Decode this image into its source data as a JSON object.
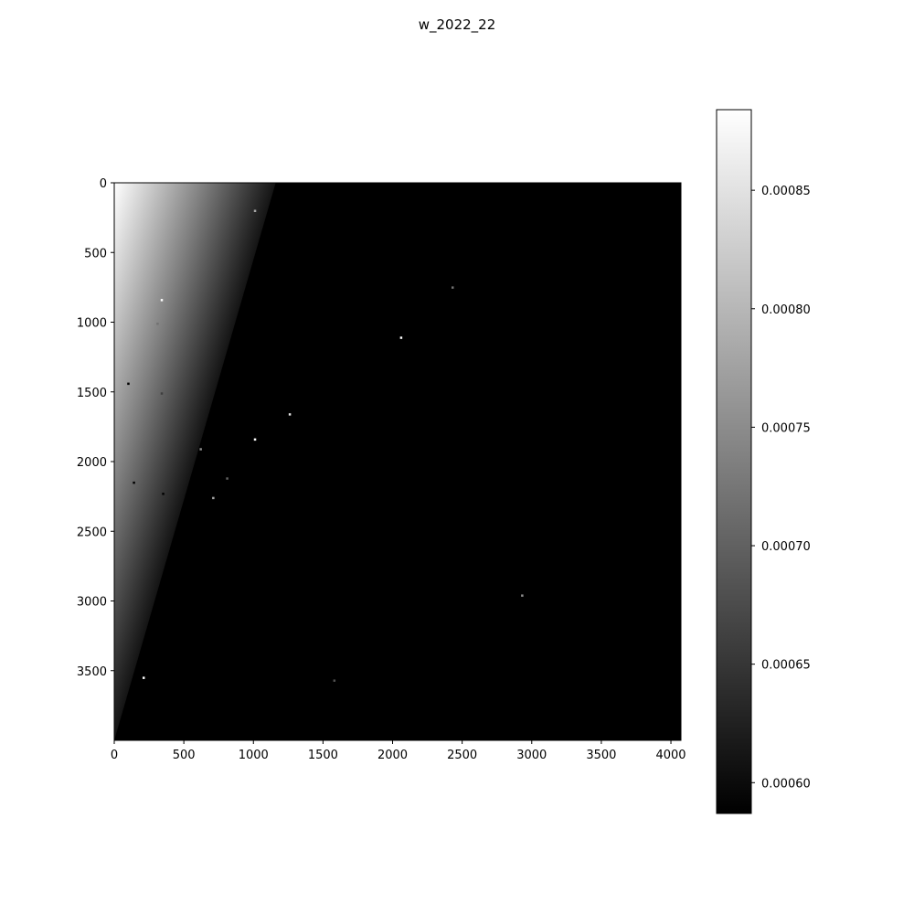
{
  "figure": {
    "title": "w_2022_22"
  },
  "chart_data": {
    "type": "heatmap",
    "title": "w_2022_22",
    "xlabel": "",
    "ylabel": "",
    "colormap": "gray",
    "xlim": [
      0,
      4072
    ],
    "ylim": [
      4000,
      0
    ],
    "y_axis_inverted": true,
    "x_ticks": [
      0,
      500,
      1000,
      1500,
      2000,
      2500,
      3000,
      3500,
      4000
    ],
    "y_ticks": [
      0,
      500,
      1000,
      1500,
      2000,
      2500,
      3000,
      3500
    ],
    "colorbar": {
      "vmin": 0.000587,
      "vmax": 0.000884,
      "ticks": [
        0.0006,
        0.00065,
        0.0007,
        0.00075,
        0.0008,
        0.00085
      ],
      "tick_labels": [
        "0.00060",
        "0.00065",
        "0.00070",
        "0.00075",
        "0.00080",
        "0.00085"
      ],
      "position": "right"
    },
    "bright_region": {
      "description_value_max": 0.000884,
      "corner": "top-left",
      "edge_x_at_top": 1160,
      "edge_x_at_bottom": 0,
      "edge_y_at_left": 4000
    },
    "point_sources": [
      {
        "x": 340,
        "y": 840,
        "value": 0.000884
      },
      {
        "x": 1010,
        "y": 200,
        "value": 0.00078
      },
      {
        "x": 2060,
        "y": 1110,
        "value": 0.000884
      },
      {
        "x": 2430,
        "y": 750,
        "value": 0.00072
      },
      {
        "x": 1260,
        "y": 1660,
        "value": 0.00085
      },
      {
        "x": 1010,
        "y": 1840,
        "value": 0.000884
      },
      {
        "x": 620,
        "y": 1910,
        "value": 0.00075
      },
      {
        "x": 810,
        "y": 2120,
        "value": 0.0007
      },
      {
        "x": 710,
        "y": 2260,
        "value": 0.00078
      },
      {
        "x": 2930,
        "y": 2960,
        "value": 0.00075
      },
      {
        "x": 210,
        "y": 3550,
        "value": 0.000884
      },
      {
        "x": 1580,
        "y": 3570,
        "value": 0.00068
      },
      {
        "x": 100,
        "y": 1440,
        "value": 0.000587
      },
      {
        "x": 140,
        "y": 2150,
        "value": 0.000587
      },
      {
        "x": 350,
        "y": 2230,
        "value": 0.000587
      },
      {
        "x": 310,
        "y": 1010,
        "value": 0.00072
      },
      {
        "x": 340,
        "y": 1510,
        "value": 0.00066
      }
    ]
  }
}
